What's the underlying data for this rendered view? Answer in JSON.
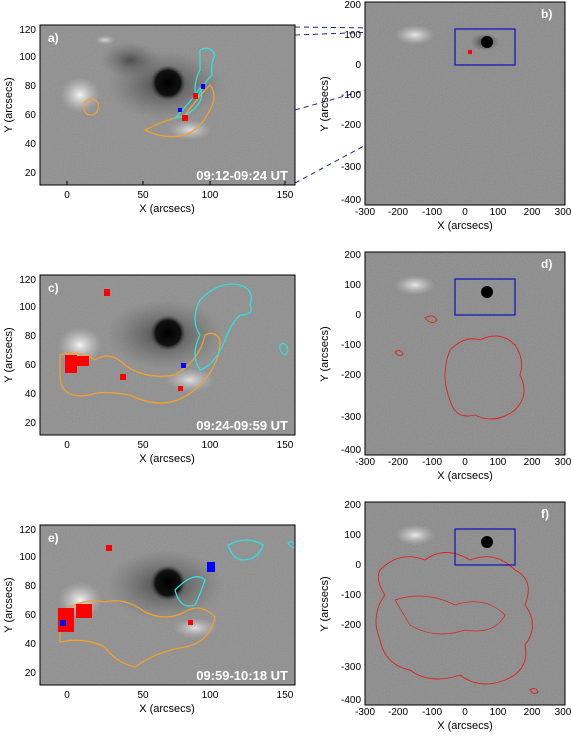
{
  "figure": {
    "left_panels": [
      {
        "label": "a)",
        "time": "09:12-09:24 UT",
        "xlabel": "X (arcsecs)",
        "ylabel": "Y (arcsecs)",
        "xticks": [
          "0",
          "50",
          "100",
          "150"
        ],
        "yticks": [
          "20",
          "40",
          "60",
          "80",
          "100",
          "120"
        ]
      },
      {
        "label": "c)",
        "time": "09:24-09:59 UT",
        "xlabel": "X (arcsecs)",
        "ylabel": "Y (arcsecs)",
        "xticks": [
          "0",
          "50",
          "100",
          "150"
        ],
        "yticks": [
          "20",
          "40",
          "60",
          "80",
          "100",
          "120"
        ]
      },
      {
        "label": "e)",
        "time": "09:59-10:18 UT",
        "xlabel": "X (arcsecs)",
        "ylabel": "Y (arcsecs)",
        "xticks": [
          "0",
          "50",
          "100",
          "150"
        ],
        "yticks": [
          "20",
          "40",
          "60",
          "80",
          "100",
          "120"
        ]
      }
    ],
    "right_panels": [
      {
        "label": "b)",
        "xlabel": "X (arcsecs)",
        "ylabel": "Y (arcsecs)",
        "xticks": [
          "-300",
          "-200",
          "-100",
          "0",
          "100",
          "200",
          "300"
        ],
        "yticks": [
          "200",
          "100",
          "0",
          "-100",
          "-200",
          "-300",
          "-400"
        ]
      },
      {
        "label": "d)",
        "xlabel": "X (arcsecs)",
        "ylabel": "Y (arcsecs)",
        "xticks": [
          "-300",
          "-200",
          "-100",
          "0",
          "100",
          "200",
          "300"
        ],
        "yticks": [
          "200",
          "100",
          "0",
          "-100",
          "-200",
          "-300",
          "-400"
        ]
      },
      {
        "label": "f)",
        "xlabel": "X (arcsecs)",
        "ylabel": "Y (arcsecs)",
        "xticks": [
          "-300",
          "-200",
          "-100",
          "0",
          "100",
          "200",
          "300"
        ],
        "yticks": [
          "200",
          "100",
          "0",
          "-100",
          "-200",
          "-300",
          "-400"
        ]
      }
    ],
    "colors": {
      "magnetogram_bg": "#8a8a8a",
      "contour_orange": "#f2a030",
      "contour_cyan": "#30e0e0",
      "contour_red": "#e02020",
      "box_blue": "#1010c0",
      "kernel_red": "#ff0000",
      "kernel_blue": "#0000ff"
    }
  }
}
